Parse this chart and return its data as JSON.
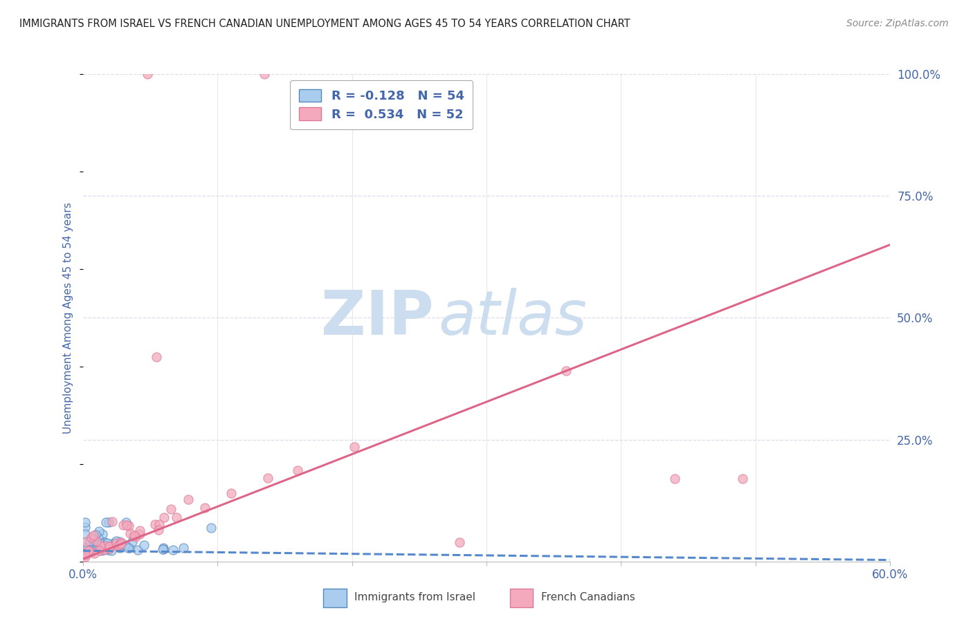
{
  "title": "IMMIGRANTS FROM ISRAEL VS FRENCH CANADIAN UNEMPLOYMENT AMONG AGES 45 TO 54 YEARS CORRELATION CHART",
  "source": "Source: ZipAtlas.com",
  "ylabel_left": "Unemployment Among Ages 45 to 54 years",
  "legend_entries": [
    {
      "label": "R = -0.128   N = 54",
      "color": "#a8c8f0"
    },
    {
      "label": "R =  0.534   N = 52",
      "color": "#f4a0b0"
    }
  ],
  "legend_label_israel": "Immigrants from Israel",
  "legend_label_french": "French Canadians",
  "israel_face_color": "#aaccee",
  "israel_edge_color": "#5588bb",
  "french_face_color": "#f4aabc",
  "french_edge_color": "#dd7799",
  "israel_line_color": "#5588cc",
  "french_line_color": "#dd6688",
  "watermark_zip": "ZIP",
  "watermark_atlas": "atlas",
  "watermark_color": "#ccddf0",
  "background_color": "#ffffff",
  "grid_color": "#ddddee",
  "tick_color": "#4466aa",
  "title_color": "#222222",
  "xlim": [
    0.0,
    0.6
  ],
  "ylim": [
    0.0,
    1.0
  ],
  "ylabel_ticks": [
    0.0,
    0.25,
    0.5,
    0.75,
    1.0
  ],
  "ylabel_labels": [
    "",
    "25.0%",
    "50.0%",
    "75.0%",
    "100.0%"
  ],
  "israel_trend_x": [
    0.0,
    0.6
  ],
  "israel_trend_y": [
    0.022,
    0.003
  ],
  "french_trend_x": [
    0.0,
    0.6
  ],
  "french_trend_y": [
    0.005,
    0.65
  ]
}
